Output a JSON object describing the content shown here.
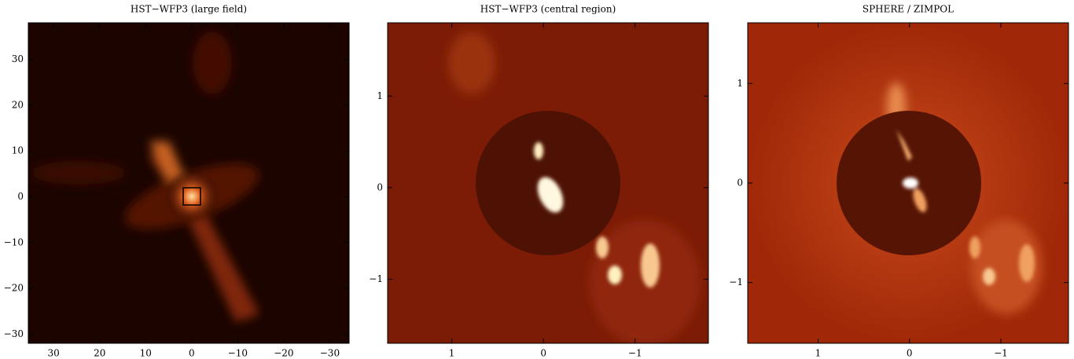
{
  "chart_data": [
    {
      "type": "image",
      "title": "HST−WFP3 (large field)",
      "xlim": [
        35.5,
        -34.2
      ],
      "ylim": [
        -32,
        38
      ],
      "xticks": [
        30,
        20,
        10,
        0,
        {
          "value": -10,
          "label": "−10"
        },
        {
          "value": -20,
          "label": "−20"
        },
        {
          "value": -30,
          "label": "−30"
        }
      ],
      "yticks": [
        30,
        20,
        10,
        0,
        {
          "value": -10,
          "label": "−10"
        },
        {
          "value": -20,
          "label": "−20"
        },
        {
          "value": -30,
          "label": "−30"
        }
      ]
    },
    {
      "type": "image",
      "title": "HST−WFP3 (central region)",
      "xlim": [
        1.7,
        -1.8
      ],
      "ylim": [
        -1.7,
        1.8
      ],
      "xticks": [
        1,
        0,
        {
          "value": -1,
          "label": "−1"
        }
      ],
      "yticks": [
        1,
        0,
        {
          "value": -1,
          "label": "−1"
        }
      ]
    },
    {
      "type": "image",
      "title": "SPHERE / ZIMPOL",
      "xlim": [
        1.77,
        -1.74
      ],
      "ylim": [
        -1.61,
        1.61
      ],
      "xticks": [
        1,
        0,
        {
          "value": -1,
          "label": "−1"
        }
      ],
      "yticks": [
        1,
        0,
        {
          "value": -1,
          "label": "−1"
        }
      ]
    }
  ]
}
